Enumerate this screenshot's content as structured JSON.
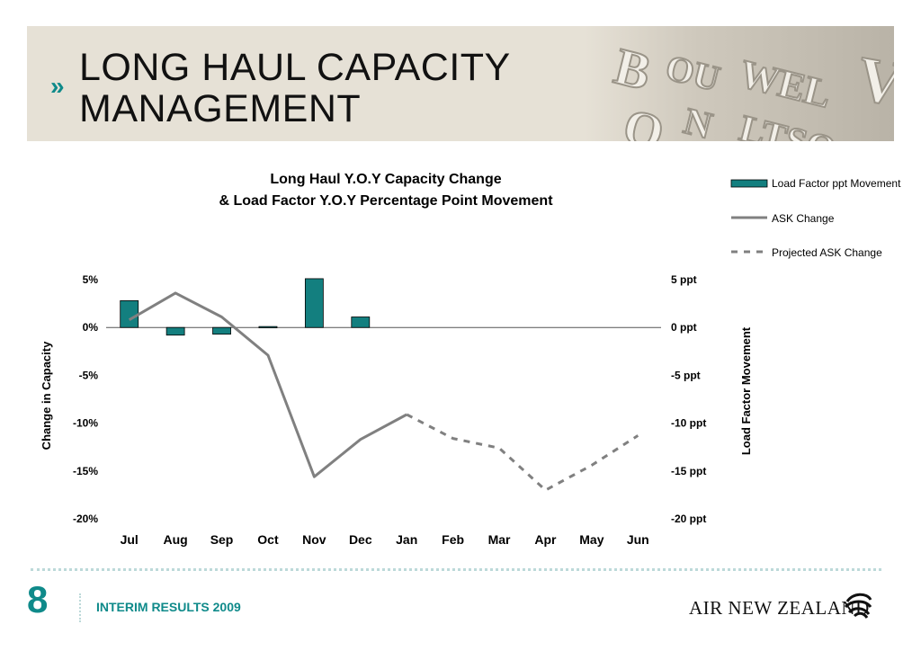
{
  "slide": {
    "title_line1": "LONG HAUL CAPACITY",
    "title_line2": "MANAGEMENT",
    "chevron": "»",
    "page_number": "8",
    "footer_text": "INTERIM RESULTS 2009",
    "brand_name": "AIR NEW ZEALAND",
    "colors": {
      "accent": "#0f8a8a",
      "bar": "#137f7f",
      "line": "#808080",
      "header_bg": "#e6e1d6"
    },
    "icons": {
      "chevron": "double-chevron-right-icon",
      "brand_logo": "koru-logo-icon"
    }
  },
  "chart_data": {
    "type": "bar",
    "title_line1": "Long Haul Y.O.Y Capacity Change",
    "title_line2": "& Load Factor Y.O.Y Percentage Point Movement",
    "categories": [
      "Jul",
      "Aug",
      "Sep",
      "Oct",
      "Nov",
      "Dec",
      "Jan",
      "Feb",
      "Mar",
      "Apr",
      "May",
      "Jun"
    ],
    "ylabel_left": "Change in Capacity",
    "ylabel_right": "Load Factor Movement",
    "ylim_left": [
      -20,
      5
    ],
    "ylim_right": [
      -20,
      5
    ],
    "left_ticks": [
      5,
      0,
      -5,
      -10,
      -15,
      -20
    ],
    "left_tick_labels": [
      "5%",
      "0%",
      "-5%",
      "-10%",
      "-15%",
      "-20%"
    ],
    "right_ticks": [
      5,
      0,
      -5,
      -10,
      -15,
      -20
    ],
    "right_tick_labels": [
      "5 ppt",
      "0 ppt",
      "-5 ppt",
      "-10 ppt",
      "-15 ppt",
      "-20 ppt"
    ],
    "grid": false,
    "legend_position": "top-right",
    "series": [
      {
        "name": "Load Factor ppt Movement",
        "kind": "bar",
        "axis": "right",
        "values": [
          2.8,
          -0.8,
          -0.7,
          0.1,
          5.1,
          1.1,
          null,
          null,
          null,
          null,
          null,
          null
        ]
      },
      {
        "name": "ASK Change",
        "kind": "line",
        "axis": "left",
        "values": [
          0.8,
          3.6,
          1.1,
          -2.9,
          -15.6,
          -11.7,
          -9.1,
          null,
          null,
          null,
          null,
          null
        ]
      },
      {
        "name": "Projected ASK Change",
        "kind": "dashed-line",
        "axis": "left",
        "values": [
          null,
          null,
          null,
          null,
          null,
          null,
          -9.1,
          -11.6,
          -12.6,
          -17.0,
          -14.4,
          -11.3
        ]
      }
    ]
  }
}
